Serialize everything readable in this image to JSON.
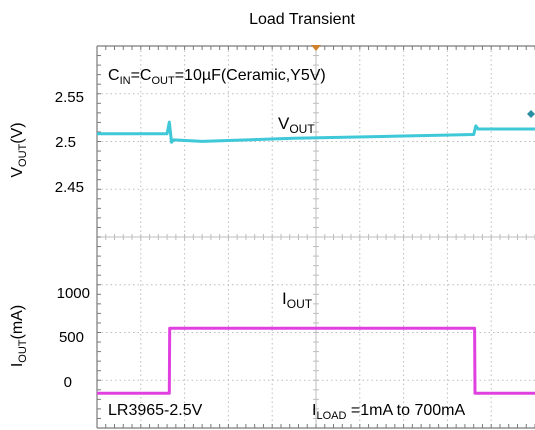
{
  "chart_data": {
    "type": "line",
    "title": "Load Transient",
    "condition": {
      "prefix": "C",
      "in_sub": "IN",
      "mid": "=C",
      "out_sub": "OUT",
      "suffix": "=10µF(Ceramic,Y5V)"
    },
    "part_label": "LR3965-2.5V",
    "load_label": {
      "prefix": "I",
      "sub": "LOAD",
      "suffix": " =1mA to 700mA"
    },
    "x_divisions": 10,
    "y_divisions": 8,
    "panels": [
      {
        "name": "voltage",
        "ylabel": {
          "prefix": "V",
          "sub": "OUT",
          "suffix": "(V)"
        },
        "yticks": [
          "2.55",
          "2.5",
          "2.45"
        ],
        "ylim": [
          2.43,
          2.58
        ],
        "series": [
          {
            "name": "VOUT",
            "label": {
              "prefix": "V",
              "sub": "OUT"
            },
            "color": "#3ec8d8",
            "x": [
              0,
              1.6,
              1.65,
              1.7,
              1.75,
              2.4,
              4.5,
              7.0,
              8.6,
              8.65,
              8.7,
              10
            ],
            "y": [
              2.508,
              2.508,
              2.523,
              2.497,
              2.5,
              2.498,
              2.502,
              2.505,
              2.507,
              2.518,
              2.514,
              2.514
            ]
          }
        ]
      },
      {
        "name": "current",
        "ylabel": {
          "prefix": "I",
          "sub": "OUT",
          "suffix": "(mA)"
        },
        "yticks": [
          "1000",
          "500",
          "0"
        ],
        "ylim": [
          -180,
          1220
        ],
        "series": [
          {
            "name": "IOUT",
            "label": {
              "prefix": "I",
              "sub": "OUT"
            },
            "color": "#e040e0",
            "x": [
              0,
              1.65,
              1.66,
              1.75,
              8.62,
              8.63,
              8.72,
              10
            ],
            "y": [
              1,
              1,
              700,
              700,
              700,
              1,
              1,
              1
            ]
          }
        ]
      }
    ]
  },
  "colors": {
    "grid": "#bdbdbd",
    "axis": "#7a7a7a",
    "marker": "#d0802a"
  }
}
